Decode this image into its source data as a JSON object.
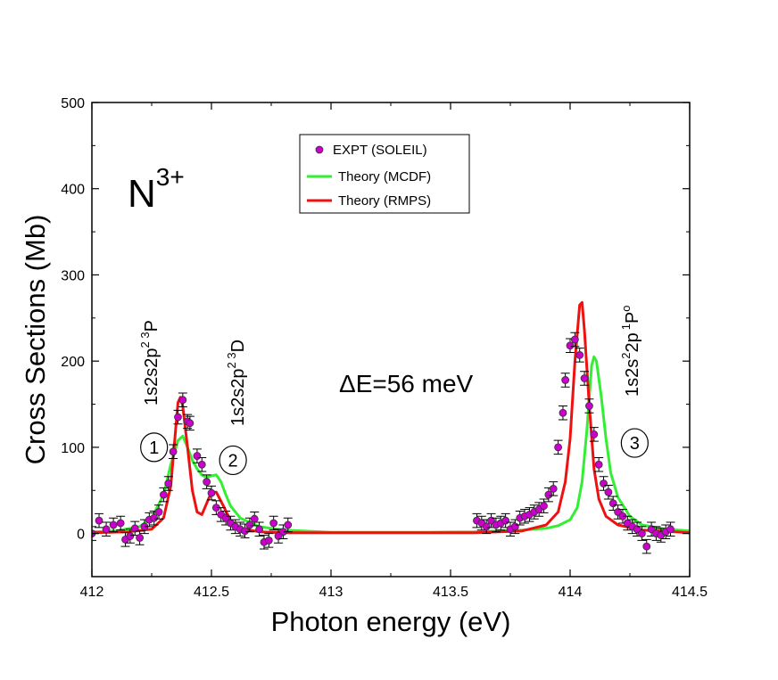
{
  "chart_data": {
    "type": "scatter",
    "xlabel": "Photon energy (eV)",
    "ylabel": "Cross Sections (Mb)",
    "xlim": [
      412,
      414.5
    ],
    "ylim": [
      -50,
      500
    ],
    "x_ticks": [
      412,
      412.5,
      413,
      413.5,
      414,
      414.5
    ],
    "x_tick_labels": [
      "412",
      "412.5",
      "413",
      "413.5",
      "414",
      "414.5"
    ],
    "y_ticks": [
      0,
      100,
      200,
      300,
      400,
      500
    ],
    "y_tick_labels": [
      "0",
      "100",
      "200",
      "300",
      "400",
      "500"
    ],
    "grid": false,
    "legend_position": "top-center",
    "ion_label": {
      "base": "N",
      "charge": "3+"
    },
    "resolution_label": "ΔE=56 meV",
    "annotations": [
      {
        "id": "1",
        "x": 412.26,
        "y": 100
      },
      {
        "id": "2",
        "x": 412.59,
        "y": 85
      },
      {
        "id": "3",
        "x": 414.27,
        "y": 105
      }
    ],
    "state_labels": [
      {
        "main": "1s2s2p",
        "sup1": "2 3",
        "term": "P",
        "sup2": "",
        "x": 412.32,
        "y": 150
      },
      {
        "main": "1s2s2p",
        "sup1": "2 3",
        "term": "D",
        "sup2": "",
        "x": 412.62,
        "y": 125
      },
      {
        "main": "1s2s",
        "sup1": "2",
        "term": "2p",
        "sup2": "1",
        "tail": "P",
        "sup3": "o",
        "x": 414.38,
        "y": 160
      }
    ],
    "series": [
      {
        "name": "EXPT (SOLEIL)",
        "kind": "points",
        "color": "#cc00cc",
        "error": 8,
        "points": [
          [
            412.0,
            0
          ],
          [
            412.03,
            15
          ],
          [
            412.06,
            5
          ],
          [
            412.09,
            10
          ],
          [
            412.12,
            12
          ],
          [
            412.14,
            -7
          ],
          [
            412.16,
            -3
          ],
          [
            412.18,
            6
          ],
          [
            412.2,
            -5
          ],
          [
            412.22,
            8
          ],
          [
            412.24,
            16
          ],
          [
            412.26,
            18
          ],
          [
            412.28,
            25
          ],
          [
            412.3,
            45
          ],
          [
            412.32,
            58
          ],
          [
            412.34,
            95
          ],
          [
            412.36,
            135
          ],
          [
            412.38,
            155
          ],
          [
            412.4,
            130
          ],
          [
            412.41,
            128
          ],
          [
            412.44,
            90
          ],
          [
            412.46,
            80
          ],
          [
            412.48,
            60
          ],
          [
            412.5,
            47
          ],
          [
            412.52,
            30
          ],
          [
            412.54,
            22
          ],
          [
            412.56,
            18
          ],
          [
            412.58,
            12
          ],
          [
            412.6,
            8
          ],
          [
            412.62,
            5
          ],
          [
            412.64,
            3
          ],
          [
            412.66,
            10
          ],
          [
            412.68,
            17
          ],
          [
            412.7,
            5
          ],
          [
            412.72,
            -10
          ],
          [
            412.74,
            -8
          ],
          [
            412.76,
            12
          ],
          [
            412.78,
            -3
          ],
          [
            412.8,
            2
          ],
          [
            412.82,
            10
          ],
          [
            413.61,
            15
          ],
          [
            413.63,
            12
          ],
          [
            413.65,
            8
          ],
          [
            413.67,
            15
          ],
          [
            413.69,
            10
          ],
          [
            413.71,
            12
          ],
          [
            413.73,
            15
          ],
          [
            413.75,
            5
          ],
          [
            413.77,
            8
          ],
          [
            413.79,
            18
          ],
          [
            413.81,
            20
          ],
          [
            413.83,
            22
          ],
          [
            413.85,
            25
          ],
          [
            413.87,
            28
          ],
          [
            413.89,
            32
          ],
          [
            413.91,
            45
          ],
          [
            413.93,
            52
          ],
          [
            413.95,
            100
          ],
          [
            413.97,
            140
          ],
          [
            413.98,
            178
          ],
          [
            414.0,
            218
          ],
          [
            414.02,
            225
          ],
          [
            414.04,
            207
          ],
          [
            414.06,
            180
          ],
          [
            414.08,
            148
          ],
          [
            414.1,
            115
          ],
          [
            414.12,
            80
          ],
          [
            414.14,
            58
          ],
          [
            414.16,
            48
          ],
          [
            414.18,
            35
          ],
          [
            414.2,
            25
          ],
          [
            414.22,
            20
          ],
          [
            414.24,
            12
          ],
          [
            414.26,
            8
          ],
          [
            414.28,
            5
          ],
          [
            414.3,
            0
          ],
          [
            414.32,
            -15
          ],
          [
            414.34,
            5
          ],
          [
            414.36,
            0
          ],
          [
            414.38,
            -2
          ],
          [
            414.4,
            2
          ],
          [
            414.42,
            5
          ]
        ]
      },
      {
        "name": "Theory (MCDF)",
        "kind": "line",
        "color": "#33ee33",
        "points": [
          [
            412.0,
            2
          ],
          [
            412.1,
            3
          ],
          [
            412.2,
            8
          ],
          [
            412.25,
            18
          ],
          [
            412.3,
            45
          ],
          [
            412.33,
            80
          ],
          [
            412.36,
            108
          ],
          [
            412.38,
            113
          ],
          [
            412.4,
            100
          ],
          [
            412.42,
            85
          ],
          [
            412.44,
            75
          ],
          [
            412.46,
            68
          ],
          [
            412.48,
            65
          ],
          [
            412.5,
            67
          ],
          [
            412.52,
            68
          ],
          [
            412.54,
            60
          ],
          [
            412.56,
            45
          ],
          [
            412.58,
            32
          ],
          [
            412.62,
            18
          ],
          [
            412.7,
            8
          ],
          [
            412.8,
            4
          ],
          [
            413.0,
            1.5
          ],
          [
            413.4,
            1.5
          ],
          [
            413.6,
            2
          ],
          [
            413.8,
            4
          ],
          [
            413.9,
            6
          ],
          [
            413.95,
            9
          ],
          [
            414.0,
            16
          ],
          [
            414.03,
            30
          ],
          [
            414.05,
            60
          ],
          [
            414.07,
            120
          ],
          [
            414.09,
            195
          ],
          [
            414.1,
            205
          ],
          [
            414.11,
            200
          ],
          [
            414.13,
            160
          ],
          [
            414.15,
            110
          ],
          [
            414.17,
            70
          ],
          [
            414.2,
            42
          ],
          [
            414.25,
            20
          ],
          [
            414.3,
            10
          ],
          [
            414.4,
            5
          ],
          [
            414.5,
            3
          ]
        ]
      },
      {
        "name": "Theory (RMPS)",
        "kind": "line",
        "color": "#ee1111",
        "points": [
          [
            412.0,
            1
          ],
          [
            412.15,
            2
          ],
          [
            412.25,
            5
          ],
          [
            412.3,
            18
          ],
          [
            412.33,
            55
          ],
          [
            412.35,
            120
          ],
          [
            412.36,
            152
          ],
          [
            412.37,
            158
          ],
          [
            412.38,
            148
          ],
          [
            412.4,
            100
          ],
          [
            412.42,
            50
          ],
          [
            412.44,
            25
          ],
          [
            412.46,
            22
          ],
          [
            412.48,
            35
          ],
          [
            412.5,
            48
          ],
          [
            412.52,
            48
          ],
          [
            412.55,
            32
          ],
          [
            412.58,
            15
          ],
          [
            412.62,
            6
          ],
          [
            412.7,
            2
          ],
          [
            412.8,
            1
          ],
          [
            413.6,
            1
          ],
          [
            413.8,
            3
          ],
          [
            413.9,
            10
          ],
          [
            413.95,
            25
          ],
          [
            413.98,
            60
          ],
          [
            414.0,
            110
          ],
          [
            414.02,
            200
          ],
          [
            414.04,
            265
          ],
          [
            414.05,
            268
          ],
          [
            414.06,
            235
          ],
          [
            414.08,
            150
          ],
          [
            414.1,
            75
          ],
          [
            414.12,
            40
          ],
          [
            414.15,
            20
          ],
          [
            414.2,
            10
          ],
          [
            414.3,
            4
          ],
          [
            414.5,
            1
          ]
        ]
      }
    ]
  }
}
